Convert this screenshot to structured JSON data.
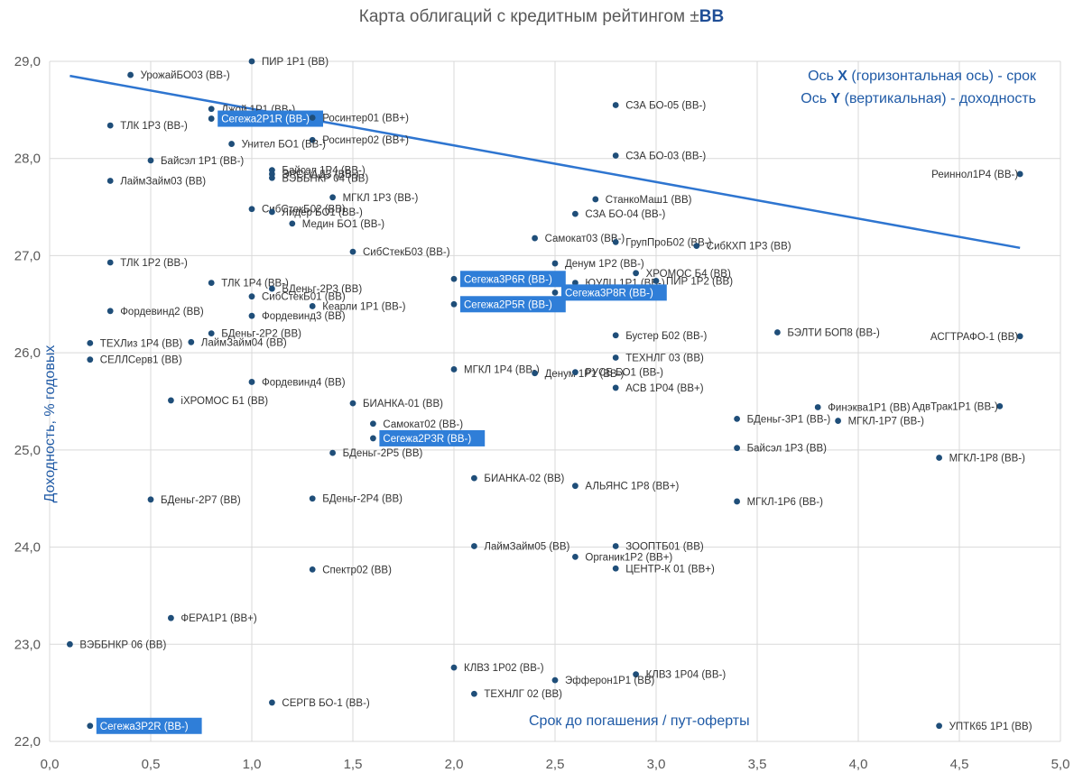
{
  "title": {
    "main": "Карта облигаций с кредитным рейтингом ±",
    "emph": "BB"
  },
  "notes": {
    "x_prefix": "Ось ",
    "x_letter": "X",
    "x_suffix": " (горизонтальная ось) - срок",
    "y_prefix": "Ось ",
    "y_letter": "Y",
    "y_suffix": " (вертикальная) - доходность"
  },
  "colors": {
    "point": "#1f4e79",
    "trend": "#2e75d0",
    "highlight": "#2f7ed8",
    "grid": "#d9d9d9"
  },
  "chart_data": {
    "type": "scatter",
    "title": "Карта облигаций с кредитным рейтингом ±BB",
    "xlabel": "Срок до погашения / пут-оферты",
    "ylabel": "Доходность, % годовых",
    "xlim": [
      0,
      5
    ],
    "ylim": [
      22,
      29
    ],
    "x_ticks": [
      "0,0",
      "0,5",
      "1,0",
      "1,5",
      "2,0",
      "2,5",
      "3,0",
      "3,5",
      "4,0",
      "4,5",
      "5,0"
    ],
    "y_ticks": [
      "22,0",
      "23,0",
      "24,0",
      "25,0",
      "26,0",
      "27,0",
      "28,0",
      "29,0"
    ],
    "trendline": {
      "x": [
        0.1,
        4.8
      ],
      "y": [
        28.85,
        27.08
      ]
    },
    "points": [
      {
        "name": "ПИР 1Р1 (BB)",
        "x": 1.0,
        "y": 29.0
      },
      {
        "name": "УрожайБО03 (BB-)",
        "x": 0.4,
        "y": 28.86
      },
      {
        "name": "Джой 1Р1 (BB-)",
        "x": 0.8,
        "y": 28.51
      },
      {
        "name": "Сегежа2Р1R (BB-)",
        "x": 0.8,
        "y": 28.41,
        "highlight": true
      },
      {
        "name": "Росинтер01 (BB+)",
        "x": 1.3,
        "y": 28.42
      },
      {
        "name": "ТЛК 1Р3 (BB-)",
        "x": 0.3,
        "y": 28.34
      },
      {
        "name": "Росинтер02 (BB+)",
        "x": 1.3,
        "y": 28.19
      },
      {
        "name": "Унител БО1 (BB-)",
        "x": 0.9,
        "y": 28.15
      },
      {
        "name": "СЗА БО-05 (BB-)",
        "x": 2.8,
        "y": 28.55
      },
      {
        "name": "СЗА БО-03 (BB-)",
        "x": 2.8,
        "y": 28.03
      },
      {
        "name": "Байсэл 1Р1 (BB-)",
        "x": 0.5,
        "y": 27.98
      },
      {
        "name": "Байсэл 1Р4 (BB-)",
        "x": 1.1,
        "y": 27.88
      },
      {
        "name": "ЭРСПАДЗ (BB-)",
        "x": 1.1,
        "y": 27.84
      },
      {
        "name": "ВЭББНКР 04 (BB)",
        "x": 1.1,
        "y": 27.8
      },
      {
        "name": "ЛаймЗайм03 (BB)",
        "x": 0.3,
        "y": 27.77
      },
      {
        "name": "МГКЛ 1Р3 (BB-)",
        "x": 1.4,
        "y": 27.6
      },
      {
        "name": "СибСтекБ02 (BB)",
        "x": 1.0,
        "y": 27.48
      },
      {
        "name": "Лидер БО1 (BB-)",
        "x": 1.1,
        "y": 27.45
      },
      {
        "name": "Медин БО1 (BB-)",
        "x": 1.2,
        "y": 27.33
      },
      {
        "name": "СтанкоМаш1 (BB)",
        "x": 2.7,
        "y": 27.58
      },
      {
        "name": "СЗА БО-04 (BB-)",
        "x": 2.6,
        "y": 27.43
      },
      {
        "name": "Самокат03 (BB-)",
        "x": 2.4,
        "y": 27.18
      },
      {
        "name": "ГрупПроБ02 (BB-)",
        "x": 2.8,
        "y": 27.14
      },
      {
        "name": "СибКХП 1Р3 (BB)",
        "x": 3.2,
        "y": 27.1
      },
      {
        "name": "Реиннол1Р4 (BB-)",
        "x": 4.8,
        "y": 27.84
      },
      {
        "name": "СибСтекБ03 (BB-)",
        "x": 1.5,
        "y": 27.04
      },
      {
        "name": "ТЛК 1Р2 (BB-)",
        "x": 0.3,
        "y": 26.93
      },
      {
        "name": "Денум 1Р2 (BB-)",
        "x": 2.5,
        "y": 26.92
      },
      {
        "name": "Сегежа3Р6R (BB-)",
        "x": 2.0,
        "y": 26.76,
        "highlight": true
      },
      {
        "name": "ХРОМОС Б4 (BB)",
        "x": 2.9,
        "y": 26.82
      },
      {
        "name": "ЮУЛЦ 1Р1 (BB-)",
        "x": 2.6,
        "y": 26.72
      },
      {
        "name": "ПИР 1Р2 (BB)",
        "x": 3.0,
        "y": 26.74
      },
      {
        "name": "ТЛК 1Р4 (BB-)",
        "x": 0.8,
        "y": 26.72
      },
      {
        "name": "БДеньг-2Р3 (BB)",
        "x": 1.1,
        "y": 26.66
      },
      {
        "name": "Сегежа3Р8R (BB-)",
        "x": 2.5,
        "y": 26.62,
        "highlight": true
      },
      {
        "name": "СибСтекБ01 (BB)",
        "x": 1.0,
        "y": 26.58
      },
      {
        "name": "Сегежа2Р5R (BB-)",
        "x": 2.0,
        "y": 26.5,
        "highlight": true
      },
      {
        "name": "Кеарли 1Р1 (BB-)",
        "x": 1.3,
        "y": 26.48
      },
      {
        "name": "Фордевинд2 (BB)",
        "x": 0.3,
        "y": 26.43
      },
      {
        "name": "Фордевинд3 (BB)",
        "x": 1.0,
        "y": 26.38
      },
      {
        "name": "БДеньг-2Р2 (BB)",
        "x": 0.8,
        "y": 26.2
      },
      {
        "name": "ТЕХЛиз 1Р4 (BB)",
        "x": 0.2,
        "y": 26.1
      },
      {
        "name": "ЛаймЗайм04 (BB)",
        "x": 0.7,
        "y": 26.11
      },
      {
        "name": "Бустер Б02 (BB-)",
        "x": 2.8,
        "y": 26.18
      },
      {
        "name": "БЭЛТИ БОП8 (BB-)",
        "x": 3.6,
        "y": 26.21
      },
      {
        "name": "АСГТРАФО-1 (BB)",
        "x": 4.8,
        "y": 26.17
      },
      {
        "name": "ТЕХНЛГ 03 (BB)",
        "x": 2.8,
        "y": 25.95
      },
      {
        "name": "СЕЛЛСерв1 (BB)",
        "x": 0.2,
        "y": 25.93
      },
      {
        "name": "МГКЛ 1Р4 (BB-)",
        "x": 2.0,
        "y": 25.83
      },
      {
        "name": "Денум 1Р1 (BB-)",
        "x": 2.4,
        "y": 25.79
      },
      {
        "name": "РУСБ БО1 (BB-)",
        "x": 2.6,
        "y": 25.8
      },
      {
        "name": "Фордевинд4 (BB)",
        "x": 1.0,
        "y": 25.7
      },
      {
        "name": "АСВ 1Р04 (BB+)",
        "x": 2.8,
        "y": 25.64
      },
      {
        "name": "iХРОМОС Б1 (BB)",
        "x": 0.6,
        "y": 25.51
      },
      {
        "name": "БИАНКА-01 (BB)",
        "x": 1.5,
        "y": 25.48
      },
      {
        "name": "Финэква1Р1 (BB)",
        "x": 3.8,
        "y": 25.44
      },
      {
        "name": "АдвТрак1Р1 (BB-)",
        "x": 4.7,
        "y": 25.45
      },
      {
        "name": "БДеньг-3Р1 (BB-)",
        "x": 3.4,
        "y": 25.32
      },
      {
        "name": "МГКЛ-1Р7 (BB-)",
        "x": 3.9,
        "y": 25.3
      },
      {
        "name": "Самокат02 (BB-)",
        "x": 1.6,
        "y": 25.27
      },
      {
        "name": "Сегежа2Р3R (BB-)",
        "x": 1.6,
        "y": 25.12,
        "highlight": true
      },
      {
        "name": "Байсэл 1Р3 (BB)",
        "x": 3.4,
        "y": 25.02
      },
      {
        "name": "БДеньг-2Р5 (BB)",
        "x": 1.4,
        "y": 24.97
      },
      {
        "name": "МГКЛ-1Р8 (BB-)",
        "x": 4.4,
        "y": 24.92
      },
      {
        "name": "БИАНКА-02 (BB)",
        "x": 2.1,
        "y": 24.71
      },
      {
        "name": "АЛЬЯНС 1Р8 (BB+)",
        "x": 2.6,
        "y": 24.63
      },
      {
        "name": "БДеньг-2Р7 (BB)",
        "x": 0.5,
        "y": 24.49
      },
      {
        "name": "БДеньг-2Р4 (BB)",
        "x": 1.3,
        "y": 24.5
      },
      {
        "name": "МГКЛ-1Р6 (BB-)",
        "x": 3.4,
        "y": 24.47
      },
      {
        "name": "ЛаймЗайм05 (BB)",
        "x": 2.1,
        "y": 24.01
      },
      {
        "name": "ЗООПТБ01 (BB)",
        "x": 2.8,
        "y": 24.01
      },
      {
        "name": "Органик1Р2 (BB+)",
        "x": 2.6,
        "y": 23.9
      },
      {
        "name": "ЦЕНТР-К 01 (BB+)",
        "x": 2.8,
        "y": 23.78
      },
      {
        "name": "Спектр02 (BB)",
        "x": 1.3,
        "y": 23.77
      },
      {
        "name": "ФЕРА1Р1 (BB+)",
        "x": 0.6,
        "y": 23.27
      },
      {
        "name": "ВЭББНКР 06 (BB)",
        "x": 0.1,
        "y": 23.0
      },
      {
        "name": "КЛВЗ 1Р02 (BB-)",
        "x": 2.0,
        "y": 22.76
      },
      {
        "name": "КЛВЗ 1Р04 (BB-)",
        "x": 2.9,
        "y": 22.69
      },
      {
        "name": "Эфферон1Р1 (BB)",
        "x": 2.5,
        "y": 22.63
      },
      {
        "name": "ТЕХНЛГ 02 (BB)",
        "x": 2.1,
        "y": 22.49
      },
      {
        "name": "СЕРГВ БО-1 (BB-)",
        "x": 1.1,
        "y": 22.4
      },
      {
        "name": "Сегежа3Р2R (BB-)",
        "x": 0.2,
        "y": 22.16,
        "highlight": true
      },
      {
        "name": "УПТК65 1Р1 (BB)",
        "x": 4.4,
        "y": 22.16
      }
    ]
  }
}
